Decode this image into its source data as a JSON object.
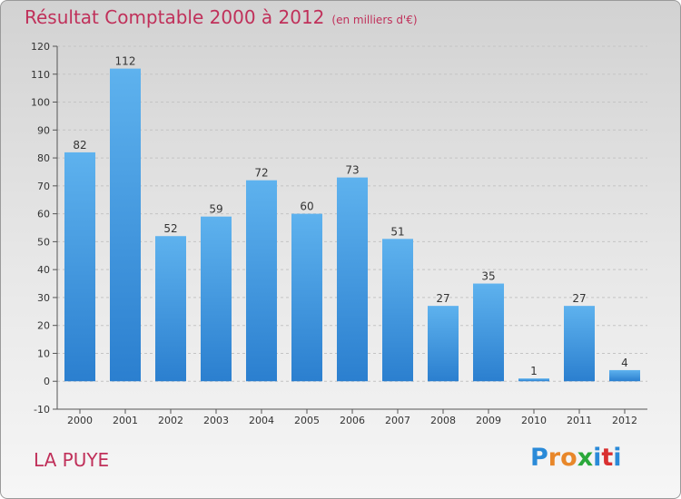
{
  "header": {
    "title": "Résultat Comptable 2000 à 2012",
    "subtitle": "(en milliers d'€)"
  },
  "footer": {
    "place": "LA PUYE",
    "logo_letters": [
      {
        "ch": "P",
        "color": "#2a8ad8"
      },
      {
        "ch": "r",
        "color": "#e8872a"
      },
      {
        "ch": "o",
        "color": "#e8872a"
      },
      {
        "ch": "x",
        "color": "#2aa83a"
      },
      {
        "ch": "i",
        "color": "#2a8ad8"
      },
      {
        "ch": "t",
        "color": "#d93030"
      },
      {
        "ch": "i",
        "color": "#2a8ad8"
      }
    ]
  },
  "chart_data": {
    "type": "bar",
    "title": "Résultat Comptable 2000 à 2012",
    "subtitle": "(en milliers d'€)",
    "categories": [
      "2000",
      "2001",
      "2002",
      "2003",
      "2004",
      "2005",
      "2006",
      "2007",
      "2008",
      "2009",
      "2010",
      "2011",
      "2012"
    ],
    "values": [
      82,
      112,
      52,
      59,
      72,
      60,
      73,
      51,
      27,
      35,
      1,
      27,
      4
    ],
    "ylim": [
      -10,
      120
    ],
    "yticks": [
      -10,
      0,
      10,
      20,
      30,
      40,
      50,
      60,
      70,
      80,
      90,
      100,
      110,
      120
    ],
    "grid": "horizontal",
    "bar_color": "#3a8fd8"
  }
}
